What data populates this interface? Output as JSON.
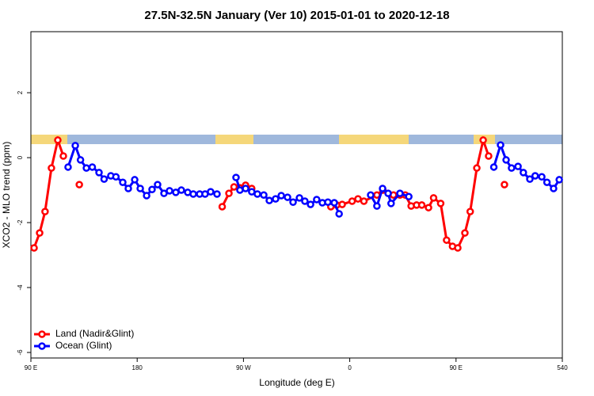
{
  "chart_data": {
    "type": "line",
    "title": "27.5N-32.5N January (Ver 10)   2015-01-01 to 2020-12-18",
    "xlabel": "Longitude (deg E)",
    "ylabel": "XCO2 - MLO trend (ppm)",
    "xlim": [
      90,
      540
    ],
    "ylim": [
      -6.17,
      3.88
    ],
    "xticks": [
      {
        "value": 90,
        "label": "90 E"
      },
      180,
      {
        "value": 270,
        "label": "90 W"
      },
      {
        "value": 360,
        "label": "0"
      },
      {
        "value": 450,
        "label": "90 E"
      },
      540
    ],
    "yticks": [
      -6,
      -4,
      -2,
      0,
      2
    ],
    "legend": "bottom-left",
    "series": [
      {
        "name": "Land (Nadir&Glint)",
        "color": "#ff0000",
        "x": [
          92.7,
          97.4,
          102,
          107.4,
          112.8,
          117.5,
          null,
          131,
          null,
          252,
          257.7,
          262,
          267,
          271.8,
          277,
          null,
          344,
          349,
          353.6,
          362,
          367,
          372,
          383,
          388,
          397,
          402.5,
          407,
          412,
          416.6,
          421,
          426.7,
          431,
          437,
          442,
          447,
          451.5,
          457.5,
          462,
          467.6,
          473,
          477.6,
          null,
          491
        ],
        "values": [
          -2.78,
          -2.32,
          -1.66,
          -0.32,
          0.54,
          0.05,
          null,
          -0.83,
          null,
          -1.51,
          -1.1,
          -0.9,
          -0.93,
          -0.85,
          -0.95,
          null,
          -1.51,
          -1.46,
          -1.44,
          -1.34,
          -1.27,
          -1.34,
          -1.15,
          -1.0,
          -1.15,
          -1.15,
          -1.15,
          -1.49,
          -1.46,
          -1.46,
          -1.54,
          -1.24,
          -1.41,
          -2.54,
          -2.73,
          -2.78,
          -2.32,
          -1.66,
          -0.32,
          0.54,
          0.05,
          null,
          -0.83
        ]
      },
      {
        "name": "Ocean (Glint)",
        "color": "#0000ff",
        "x": [
          121.5,
          127.6,
          132,
          137,
          142,
          147.7,
          152,
          157.7,
          162,
          167.8,
          172.5,
          177.9,
          182.6,
          188,
          192.6,
          197.3,
          202.7,
          207.4,
          212.7,
          217.4,
          222.8,
          227.5,
          232.9,
          237.5,
          242.2,
          247.6,
          null,
          263.7,
          267,
          271.8,
          277,
          281.8,
          287.2,
          291.9,
          297.2,
          302,
          307.3,
          312,
          317.4,
          322,
          326.8,
          332,
          336.8,
          341.5,
          346.9,
          351,
          null,
          377.7,
          383,
          387.8,
          392.5,
          395,
          402.5,
          410,
          null,
          482,
          487.7,
          492.4,
          497,
          502.5,
          507,
          512.5,
          517,
          522.6,
          527,
          532.6,
          537.4
        ],
        "values": [
          -0.29,
          0.37,
          -0.07,
          -0.32,
          -0.29,
          -0.46,
          -0.66,
          -0.56,
          -0.59,
          -0.76,
          -0.95,
          -0.68,
          -0.95,
          -1.17,
          -0.98,
          -0.83,
          -1.1,
          -1.02,
          -1.07,
          -1.0,
          -1.07,
          -1.12,
          -1.12,
          -1.12,
          -1.05,
          -1.12,
          null,
          -0.61,
          -1.0,
          -0.95,
          -1.05,
          -1.12,
          -1.15,
          -1.32,
          -1.27,
          -1.17,
          -1.22,
          -1.37,
          -1.24,
          -1.34,
          -1.44,
          -1.29,
          -1.39,
          -1.37,
          -1.39,
          -1.73,
          null,
          -1.15,
          -1.49,
          -0.95,
          -1.1,
          -1.41,
          -1.1,
          -1.2,
          null,
          -0.29,
          0.39,
          -0.07,
          -0.32,
          -0.27,
          -0.46,
          -0.66,
          -0.56,
          -0.59,
          -0.76,
          -0.95,
          -0.68
        ]
      }
    ]
  }
}
